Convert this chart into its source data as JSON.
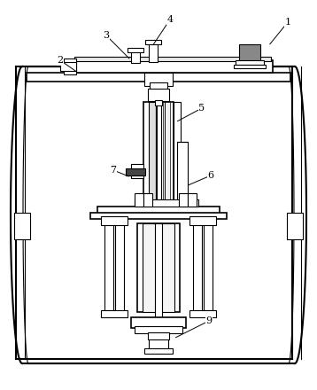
{
  "bg_color": "#ffffff",
  "lc": "#000000",
  "figsize": [
    3.58,
    4.4
  ],
  "dpi": 100,
  "labels": [
    [
      "1",
      325,
      25,
      303,
      52
    ],
    [
      "2",
      68,
      68,
      88,
      82
    ],
    [
      "3",
      120,
      40,
      148,
      68
    ],
    [
      "4",
      192,
      22,
      172,
      52
    ],
    [
      "5",
      228,
      122,
      198,
      138
    ],
    [
      "6",
      238,
      198,
      210,
      210
    ],
    [
      "7",
      128,
      192,
      148,
      200
    ],
    [
      "9",
      236,
      362,
      196,
      382
    ]
  ]
}
